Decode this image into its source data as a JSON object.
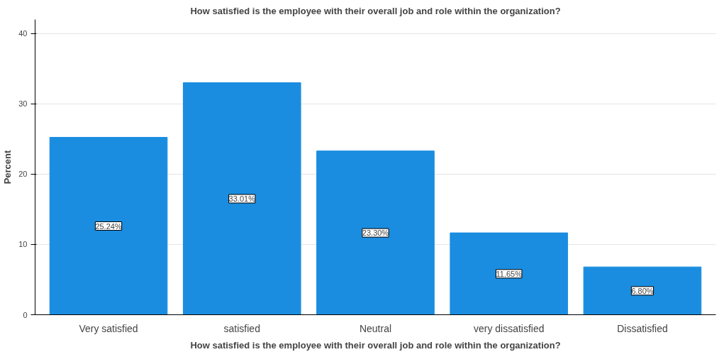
{
  "chart_data": {
    "type": "bar",
    "title": "How satisfied is the employee with their overall job and role within the organization?",
    "xlabel": "How satisfied is the employee with their overall job and role within the organization?",
    "ylabel": "Percent",
    "categories": [
      "Very satisfied",
      "satisfied",
      "Neutral",
      "very dissatisfied",
      "Dissatisfied"
    ],
    "values": [
      25.24,
      33.01,
      23.3,
      11.65,
      6.8
    ],
    "value_labels": [
      "25.24%",
      "33.01%",
      "23.30%",
      "11.65%",
      "6.80%"
    ],
    "color": "#1a8de0",
    "ylim": [
      0,
      42
    ],
    "yticks": [
      0,
      10,
      20,
      30,
      40
    ],
    "grid": "y"
  }
}
